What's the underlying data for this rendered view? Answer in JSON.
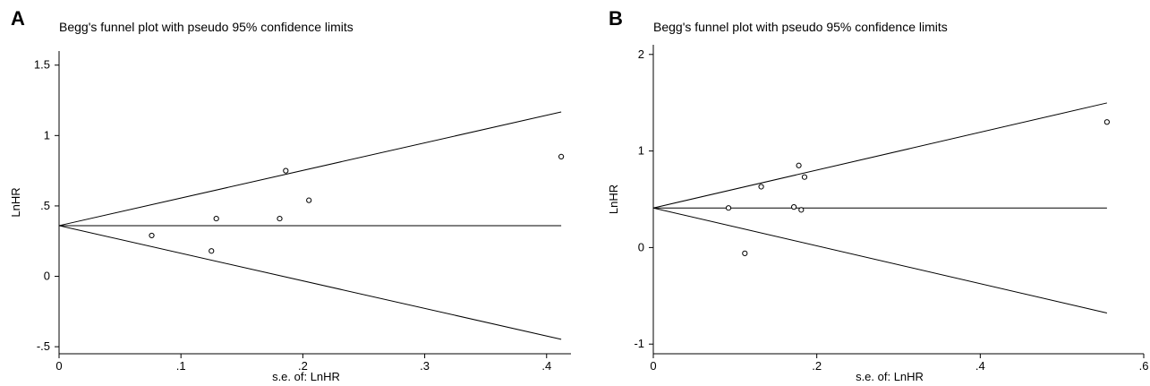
{
  "panels": [
    {
      "letter": "A",
      "chart_data": {
        "type": "scatter",
        "title": "Begg's funnel plot with pseudo 95% confidence limits",
        "xlabel": "s.e. of: LnHR",
        "ylabel": "LnHR",
        "xlim": [
          0,
          0.42
        ],
        "ylim": [
          -0.55,
          1.6
        ],
        "xticks": [
          0,
          0.1,
          0.2,
          0.3,
          0.4
        ],
        "xtick_labels": [
          "0",
          ".1",
          ".2",
          ".3",
          ".4"
        ],
        "yticks": [
          -0.5,
          0,
          0.5,
          1,
          1.5
        ],
        "ytick_labels": [
          "-.5",
          "0",
          ".5",
          "1",
          "1.5"
        ],
        "pooled_effect": 0.36,
        "limit_max_se": 0.412,
        "points": [
          {
            "x": 0.076,
            "y": 0.29
          },
          {
            "x": 0.125,
            "y": 0.18
          },
          {
            "x": 0.129,
            "y": 0.41
          },
          {
            "x": 0.181,
            "y": 0.41
          },
          {
            "x": 0.186,
            "y": 0.75
          },
          {
            "x": 0.205,
            "y": 0.54
          },
          {
            "x": 0.412,
            "y": 0.85
          }
        ],
        "grid": false,
        "legend": "none"
      }
    },
    {
      "letter": "B",
      "chart_data": {
        "type": "scatter",
        "title": "Begg's funnel plot with pseudo 95% confidence limits",
        "xlabel": "s.e. of: LnHR",
        "ylabel": "LnHR",
        "xlim": [
          0,
          0.6
        ],
        "ylim": [
          -1.1,
          2.1
        ],
        "xticks": [
          0,
          0.2,
          0.4,
          0.6
        ],
        "xtick_labels": [
          "0",
          ".2",
          ".4",
          ".6"
        ],
        "yticks": [
          -1,
          0,
          1,
          2
        ],
        "ytick_labels": [
          "-1",
          "0",
          "1",
          "2"
        ],
        "pooled_effect": 0.41,
        "limit_max_se": 0.555,
        "points": [
          {
            "x": 0.092,
            "y": 0.41
          },
          {
            "x": 0.112,
            "y": -0.06
          },
          {
            "x": 0.132,
            "y": 0.63
          },
          {
            "x": 0.172,
            "y": 0.42
          },
          {
            "x": 0.178,
            "y": 0.85
          },
          {
            "x": 0.181,
            "y": 0.39
          },
          {
            "x": 0.185,
            "y": 0.73
          },
          {
            "x": 0.555,
            "y": 1.3
          }
        ],
        "grid": false,
        "legend": "none"
      }
    }
  ]
}
